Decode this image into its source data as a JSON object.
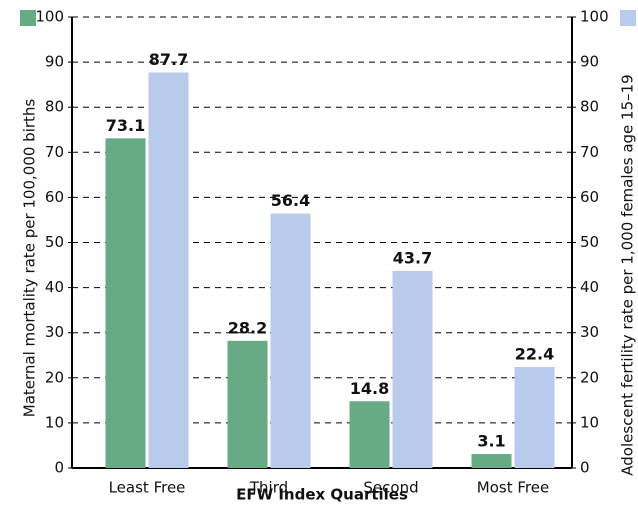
{
  "chart_data": {
    "type": "bar",
    "x_label": "EFW Index Quartiles",
    "y_label": "Maternal mortality rate per 100,000 births",
    "y2_label": "Adolescent fertility rate per 1,000 females age 15–19",
    "categories": [
      "Least Free",
      "Third",
      "Second",
      "Most Free"
    ],
    "series": [
      {
        "color": "#67ab85",
        "values": [
          73.1,
          28.2,
          14.8,
          3.1
        ]
      },
      {
        "color": "#b8cbea",
        "values": [
          87.7,
          56.4,
          43.7,
          22.4
        ],
        "axis": "y2"
      }
    ],
    "ylim": [
      0,
      100
    ],
    "yticks": [
      0,
      10,
      20,
      30,
      40,
      50,
      60,
      70,
      80,
      90,
      100
    ],
    "y2lim": [
      0,
      100
    ],
    "y2ticks": [
      0,
      10,
      20,
      30,
      40,
      50,
      60,
      70,
      80,
      90,
      100
    ],
    "grid": true
  }
}
